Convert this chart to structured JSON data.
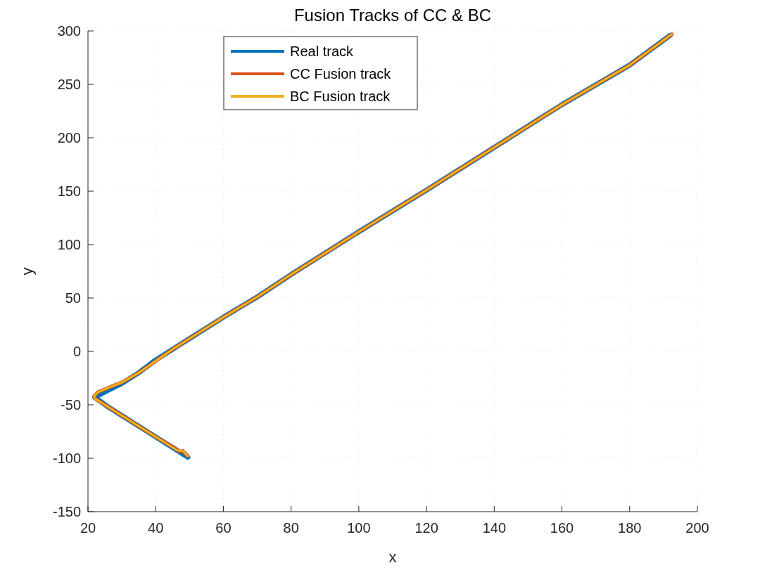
{
  "chart_data": {
    "type": "line",
    "title": "Fusion Tracks of CC & BC",
    "xlabel": "x",
    "ylabel": "y",
    "xlim": [
      20,
      200
    ],
    "xticks": [
      20,
      40,
      60,
      80,
      100,
      120,
      140,
      160,
      180,
      200
    ],
    "ylim": [
      -150,
      300
    ],
    "yticks": [
      -150,
      -100,
      -50,
      0,
      50,
      100,
      150,
      200,
      250,
      300
    ],
    "grid": true,
    "legend": "top",
    "line_style": "solid",
    "marker": "none",
    "series": [
      {
        "name": "Real track",
        "color": "#0072bd",
        "x": [
          49.5,
          45,
          40,
          35,
          30,
          26,
          22.5,
          22,
          25,
          30,
          35,
          40,
          45,
          50,
          60,
          70,
          80,
          90,
          100,
          120,
          140,
          160,
          180,
          192
        ],
        "values": [
          -99,
          -90,
          -80,
          -70,
          -60,
          -52,
          -44,
          -43,
          -38,
          -30,
          -20,
          -8,
          2,
          12,
          32,
          51,
          72,
          92,
          112,
          151,
          191,
          231,
          268,
          296
        ]
      },
      {
        "name": "CC Fusion track",
        "color": "#d95319",
        "x": [
          49.5,
          48,
          47,
          46,
          40,
          30,
          24,
          22,
          21.8,
          23,
          26,
          30,
          35,
          40,
          45,
          50,
          60,
          70,
          80,
          90,
          100,
          120,
          140,
          160,
          180,
          192.5
        ],
        "values": [
          -98,
          -93,
          -94,
          -91,
          -80,
          -60,
          -48,
          -44,
          -42,
          -38,
          -34,
          -29,
          -20,
          -9,
          2,
          12,
          32,
          51,
          72,
          92,
          112,
          151,
          191,
          231,
          268,
          297
        ]
      },
      {
        "name": "BC Fusion track",
        "color": "#edb120",
        "x": [
          49.5,
          48,
          47,
          46,
          40,
          30,
          24,
          22,
          21.8,
          23,
          26,
          30,
          35,
          40,
          45,
          50,
          60,
          70,
          80,
          90,
          100,
          120,
          140,
          160,
          180,
          192.5
        ],
        "values": [
          -98,
          -93,
          -93,
          -92,
          -80,
          -60,
          -48,
          -44,
          -42,
          -38,
          -34,
          -29,
          -20,
          -9,
          2,
          12,
          32,
          51,
          72,
          92,
          112,
          151,
          191,
          231,
          268,
          297
        ]
      }
    ]
  }
}
